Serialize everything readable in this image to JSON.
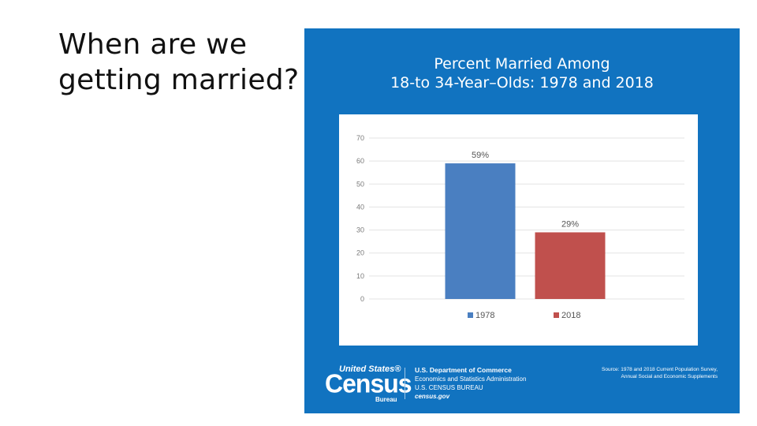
{
  "slide": {
    "title_lines": [
      "When are we",
      "getting married?"
    ]
  },
  "infographic": {
    "title_lines": [
      "Percent Married Among",
      "18-to 34-Year–Olds: 1978 and 2018"
    ],
    "background": "#1173c0",
    "logo": {
      "united_states": "United States®",
      "census": "Census",
      "bureau": "Bureau"
    },
    "agency_lines": [
      "U.S. Department of Commerce",
      "Economics and Statistics Administration",
      "U.S. CENSUS BUREAU",
      "census.gov"
    ],
    "source_lines": [
      "Source: 1978 and 2018 Current Population Survey,",
      "Annual Social and Economic Supplements"
    ]
  },
  "chart_data": {
    "type": "bar",
    "title": "Percent Married Among 18-to 34-Year–Olds: 1978 and 2018",
    "xlabel": "",
    "ylabel": "",
    "ylim": [
      0,
      70
    ],
    "yticks": [
      0,
      10,
      20,
      30,
      40,
      50,
      60,
      70
    ],
    "grid": true,
    "legend": "bottom",
    "categories": [
      "1978",
      "2018"
    ],
    "values": [
      59,
      29
    ],
    "data_labels": [
      "59%",
      "29%"
    ],
    "colors": [
      "#4a7fc1",
      "#c0504d"
    ]
  }
}
